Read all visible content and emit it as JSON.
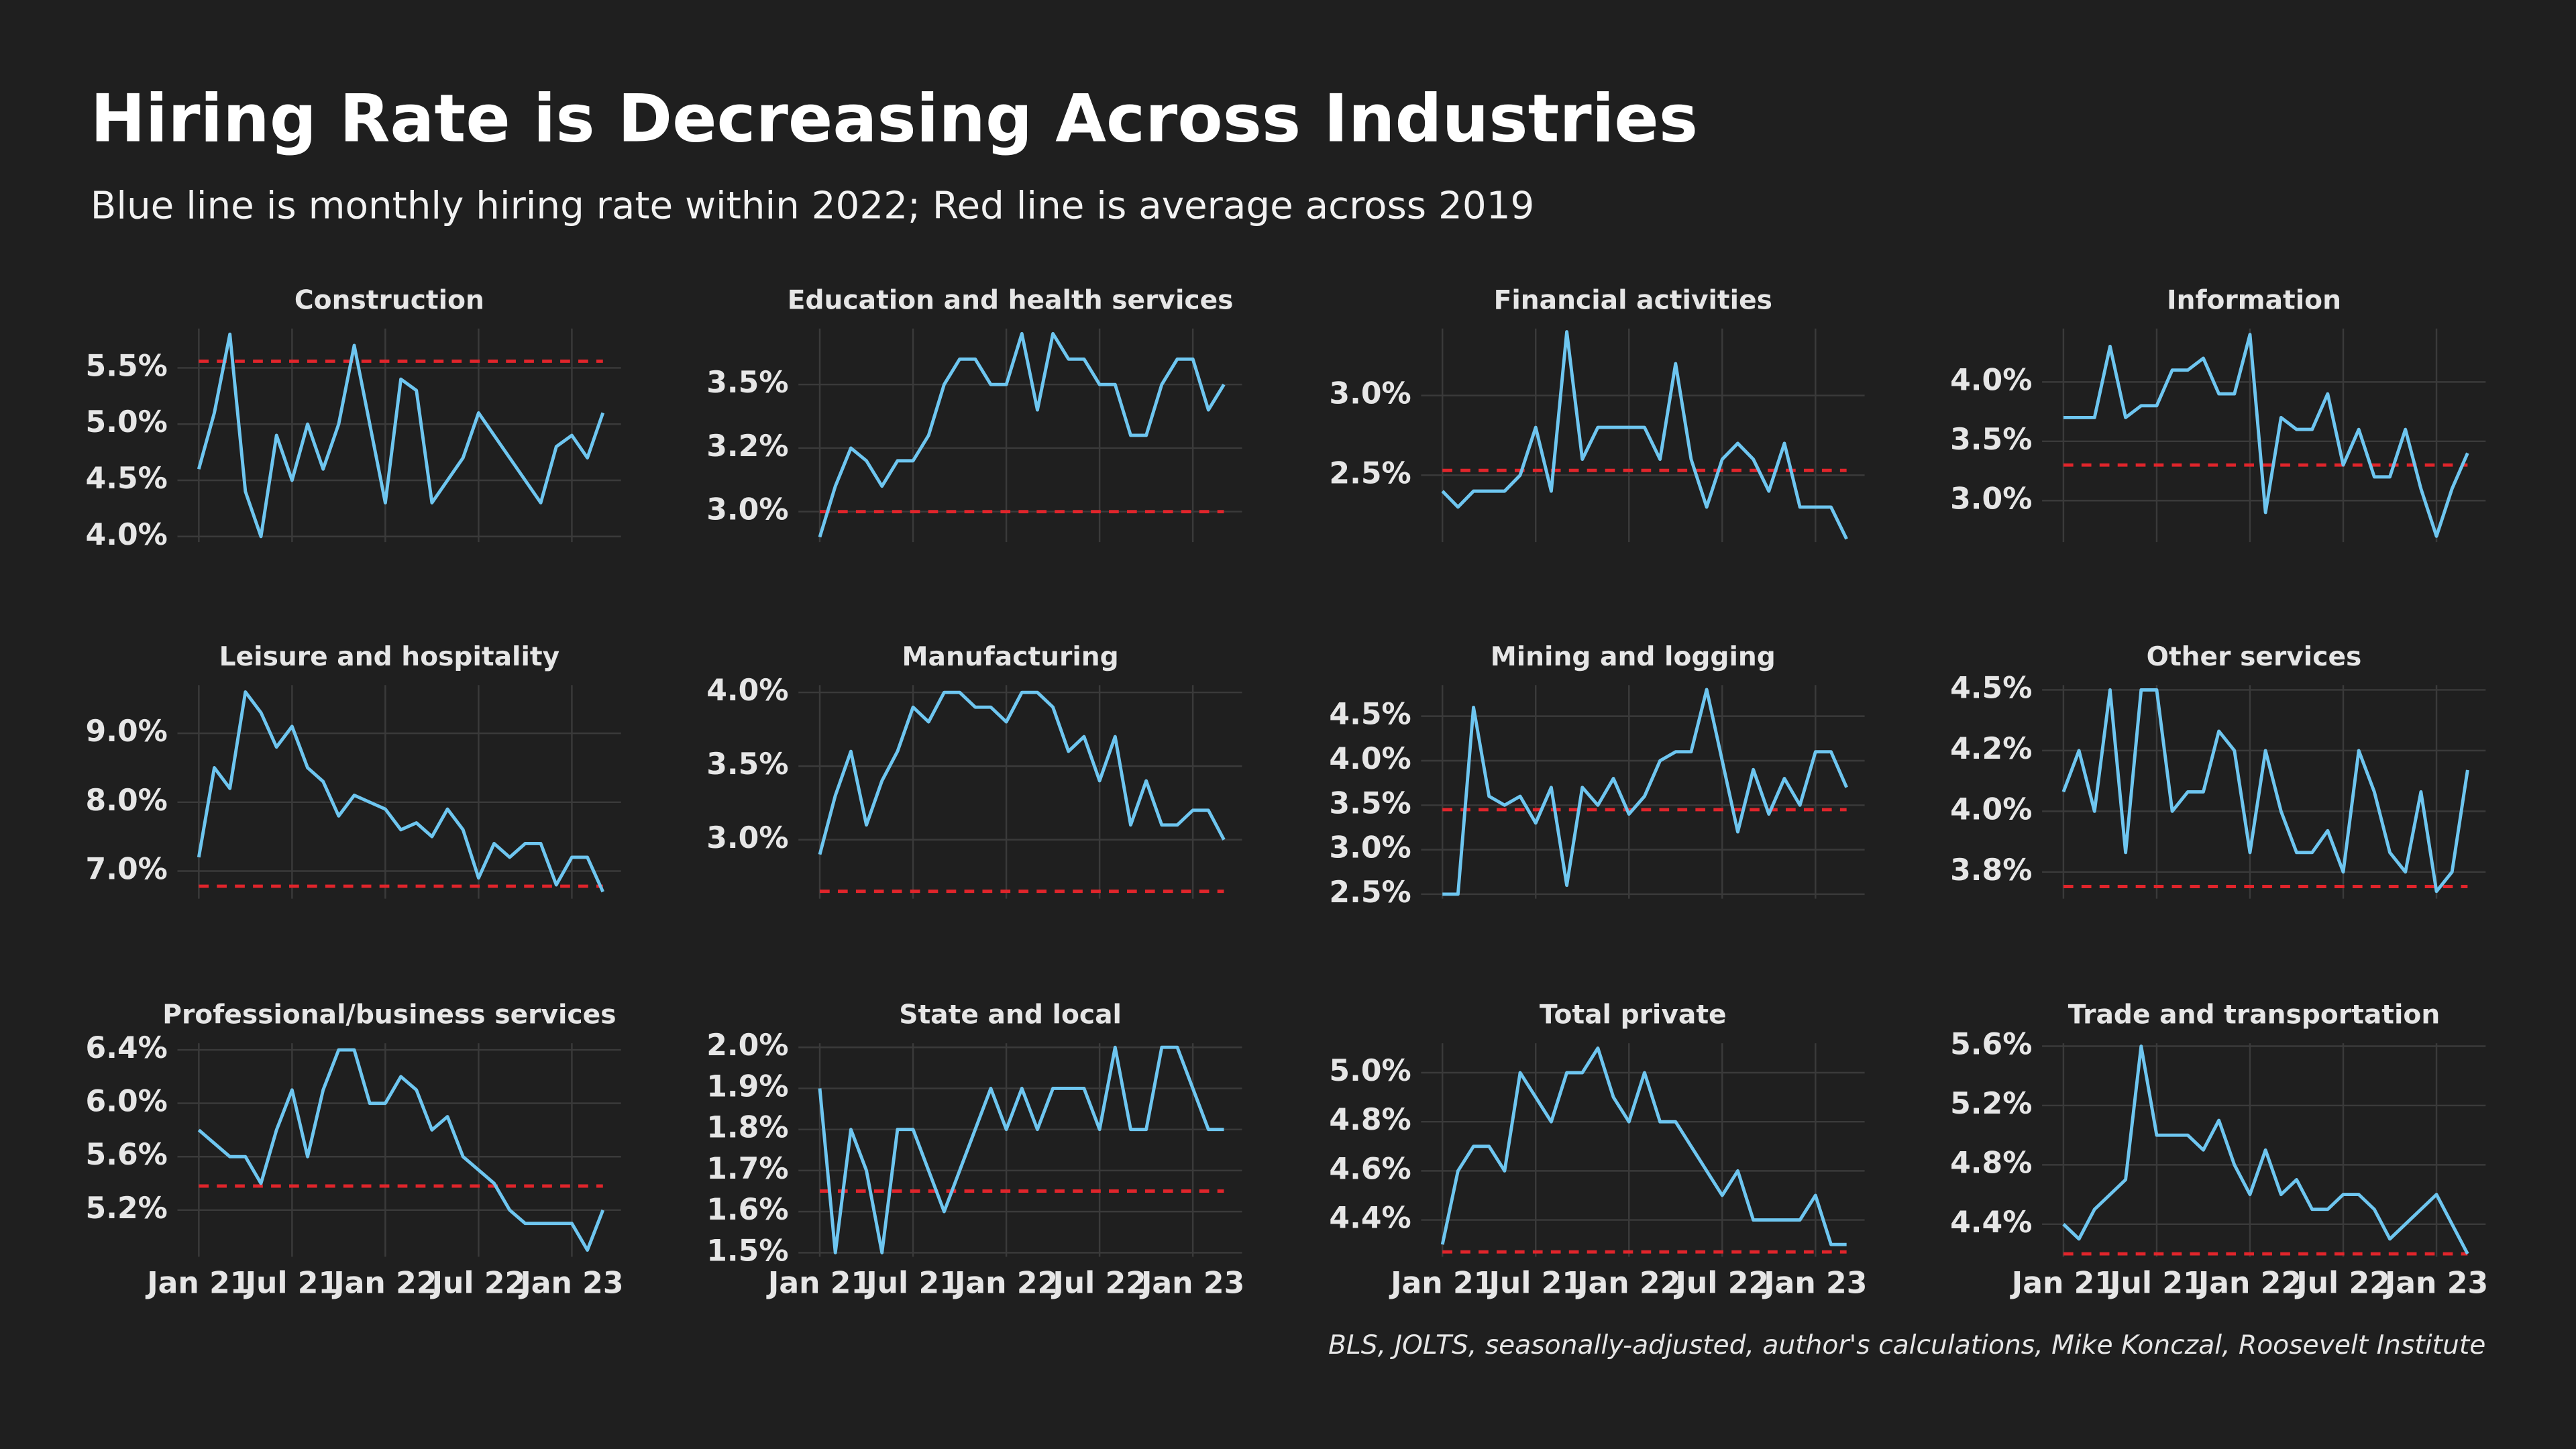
{
  "title": "Hiring Rate is Decreasing Across Industries",
  "subtitle": "Blue line is monthly hiring rate within 2022; Red line is average across 2019",
  "caption": "BLS, JOLTS, seasonally-adjusted, author's calculations, Mike Konczal, Roosevelt Institute",
  "categories": [
    "Jan 21",
    null,
    null,
    null,
    null,
    null,
    "Jul 21",
    null,
    null,
    null,
    null,
    null,
    "Jan 22",
    null,
    null,
    null,
    null,
    null,
    "Jul 22",
    null,
    null,
    null,
    null,
    null,
    "Jan 23",
    null,
    null
  ],
  "chart_data": [
    {
      "type": "line",
      "title": "Construction",
      "ylim": [
        3.95,
        5.85
      ],
      "yticks": [
        {
          "value": 4.0,
          "label": "4.0%"
        },
        {
          "value": 4.5,
          "label": "4.5%"
        },
        {
          "value": 5.0,
          "label": "5.0%"
        },
        {
          "value": 5.5,
          "label": "5.5%"
        }
      ],
      "series": [
        {
          "color": "#6ec6f0",
          "values": [
            4.6,
            5.1,
            5.8,
            4.4,
            4.0,
            4.9,
            4.5,
            5.0,
            4.6,
            5.0,
            5.7,
            5.0,
            4.3,
            5.4,
            5.3,
            4.3,
            4.5,
            4.7,
            5.1,
            4.9,
            4.7,
            4.5,
            4.3,
            4.8,
            4.9,
            4.7,
            5.1
          ]
        }
      ],
      "reference_line": {
        "value": 5.56,
        "color": "#e0252b"
      }
    },
    {
      "type": "line",
      "title": "Education and health services",
      "ylim": [
        2.88,
        3.72
      ],
      "yticks": [
        {
          "value": 3.0,
          "label": "3.0%"
        },
        {
          "value": 3.25,
          "label": "3.2%"
        },
        {
          "value": 3.5,
          "label": "3.5%"
        }
      ],
      "series": [
        {
          "color": "#6ec6f0",
          "values": [
            2.9,
            3.1,
            3.25,
            3.2,
            3.1,
            3.2,
            3.2,
            3.3,
            3.5,
            3.6,
            3.6,
            3.5,
            3.5,
            3.7,
            3.4,
            3.7,
            3.6,
            3.6,
            3.5,
            3.5,
            3.3,
            3.3,
            3.5,
            3.6,
            3.6,
            3.4,
            3.5
          ]
        }
      ],
      "reference_line": {
        "value": 3.0,
        "color": "#e0252b"
      }
    },
    {
      "type": "line",
      "title": "Financial activities",
      "ylim": [
        2.08,
        3.42
      ],
      "yticks": [
        {
          "value": 2.5,
          "label": "2.5%"
        },
        {
          "value": 3.0,
          "label": "3.0%"
        }
      ],
      "series": [
        {
          "color": "#6ec6f0",
          "values": [
            2.4,
            2.3,
            2.4,
            2.4,
            2.4,
            2.5,
            2.8,
            2.4,
            3.4,
            2.6,
            2.8,
            2.8,
            2.8,
            2.8,
            2.6,
            3.2,
            2.6,
            2.3,
            2.6,
            2.7,
            2.6,
            2.4,
            2.7,
            2.3,
            2.3,
            2.3,
            2.1
          ]
        }
      ],
      "reference_line": {
        "value": 2.53,
        "color": "#e0252b"
      }
    },
    {
      "type": "line",
      "title": "Information",
      "ylim": [
        2.65,
        4.45
      ],
      "yticks": [
        {
          "value": 3.0,
          "label": "3.0%"
        },
        {
          "value": 3.5,
          "label": "3.5%"
        },
        {
          "value": 4.0,
          "label": "4.0%"
        }
      ],
      "series": [
        {
          "color": "#6ec6f0",
          "values": [
            3.7,
            3.7,
            3.7,
            4.3,
            3.7,
            3.8,
            3.8,
            4.1,
            4.1,
            4.2,
            3.9,
            3.9,
            4.4,
            2.9,
            3.7,
            3.6,
            3.6,
            3.9,
            3.3,
            3.6,
            3.2,
            3.2,
            3.6,
            3.1,
            2.7,
            3.1,
            3.4
          ]
        }
      ],
      "reference_line": {
        "value": 3.3,
        "color": "#e0252b"
      }
    },
    {
      "type": "line",
      "title": "Leisure and hospitality",
      "ylim": [
        6.6,
        9.7
      ],
      "yticks": [
        {
          "value": 7.0,
          "label": "7.0%"
        },
        {
          "value": 8.0,
          "label": "8.0%"
        },
        {
          "value": 9.0,
          "label": "9.0%"
        }
      ],
      "series": [
        {
          "color": "#6ec6f0",
          "values": [
            7.2,
            8.5,
            8.2,
            9.6,
            9.3,
            8.8,
            9.1,
            8.5,
            8.3,
            7.8,
            8.1,
            8.0,
            7.9,
            7.6,
            7.7,
            7.5,
            7.9,
            7.6,
            6.9,
            7.4,
            7.2,
            7.4,
            7.4,
            6.8,
            7.2,
            7.2,
            6.7
          ]
        }
      ],
      "reference_line": {
        "value": 6.78,
        "color": "#e0252b"
      }
    },
    {
      "type": "line",
      "title": "Manufacturing",
      "ylim": [
        2.6,
        4.05
      ],
      "yticks": [
        {
          "value": 3.0,
          "label": "3.0%"
        },
        {
          "value": 3.5,
          "label": "3.5%"
        },
        {
          "value": 4.0,
          "label": "4.0%"
        }
      ],
      "series": [
        {
          "color": "#6ec6f0",
          "values": [
            2.9,
            3.3,
            3.6,
            3.1,
            3.4,
            3.6,
            3.9,
            3.8,
            4.0,
            4.0,
            3.9,
            3.9,
            3.8,
            4.0,
            4.0,
            3.9,
            3.6,
            3.7,
            3.4,
            3.7,
            3.1,
            3.4,
            3.1,
            3.1,
            3.2,
            3.2,
            3.0
          ]
        }
      ],
      "reference_line": {
        "value": 2.65,
        "color": "#e0252b"
      }
    },
    {
      "type": "line",
      "title": "Mining and logging",
      "ylim": [
        2.45,
        4.85
      ],
      "yticks": [
        {
          "value": 2.5,
          "label": "2.5%"
        },
        {
          "value": 3.0,
          "label": "3.0%"
        },
        {
          "value": 3.5,
          "label": "3.5%"
        },
        {
          "value": 4.0,
          "label": "4.0%"
        },
        {
          "value": 4.5,
          "label": "4.5%"
        }
      ],
      "series": [
        {
          "color": "#6ec6f0",
          "values": [
            2.5,
            2.5,
            4.6,
            3.6,
            3.5,
            3.6,
            3.3,
            3.7,
            2.6,
            3.7,
            3.5,
            3.8,
            3.4,
            3.6,
            4.0,
            4.1,
            4.1,
            4.8,
            4.0,
            3.2,
            3.9,
            3.4,
            3.8,
            3.5,
            4.1,
            4.1,
            3.7
          ]
        }
      ],
      "reference_line": {
        "value": 3.45,
        "color": "#e0252b"
      }
    },
    {
      "type": "line",
      "title": "Other services",
      "ylim": [
        3.64,
        4.52
      ],
      "yticks": [
        {
          "value": 3.75,
          "label": "3.8%"
        },
        {
          "value": 4.0,
          "label": "4.0%"
        },
        {
          "value": 4.25,
          "label": "4.2%"
        },
        {
          "value": 4.5,
          "label": "4.5%"
        }
      ],
      "series": [
        {
          "color": "#6ec6f0",
          "values": [
            4.08,
            4.25,
            4.0,
            4.5,
            3.83,
            4.5,
            4.5,
            4.0,
            4.08,
            4.08,
            4.33,
            4.25,
            3.83,
            4.25,
            4.0,
            3.83,
            3.83,
            3.92,
            3.75,
            4.25,
            4.08,
            3.83,
            3.75,
            4.08,
            3.67,
            3.75,
            4.17
          ]
        }
      ],
      "reference_line": {
        "value": 3.69,
        "color": "#e0252b"
      }
    },
    {
      "type": "line",
      "title": "Professional/business services",
      "ylim": [
        4.85,
        6.45
      ],
      "yticks": [
        {
          "value": 5.2,
          "label": "5.2%"
        },
        {
          "value": 5.6,
          "label": "5.6%"
        },
        {
          "value": 6.0,
          "label": "6.0%"
        },
        {
          "value": 6.4,
          "label": "6.4%"
        }
      ],
      "series": [
        {
          "color": "#6ec6f0",
          "values": [
            5.8,
            5.7,
            5.6,
            5.6,
            5.4,
            5.8,
            6.1,
            5.6,
            6.1,
            6.4,
            6.4,
            6.0,
            6.0,
            6.2,
            6.1,
            5.8,
            5.9,
            5.6,
            5.5,
            5.4,
            5.2,
            5.1,
            5.1,
            5.1,
            5.1,
            4.9,
            5.2
          ]
        }
      ],
      "reference_line": {
        "value": 5.38,
        "color": "#e0252b"
      }
    },
    {
      "type": "line",
      "title": "State and local",
      "ylim": [
        1.49,
        2.01
      ],
      "yticks": [
        {
          "value": 1.5,
          "label": "1.5%"
        },
        {
          "value": 1.6,
          "label": "1.6%"
        },
        {
          "value": 1.7,
          "label": "1.7%"
        },
        {
          "value": 1.8,
          "label": "1.8%"
        },
        {
          "value": 1.9,
          "label": "1.9%"
        },
        {
          "value": 2.0,
          "label": "2.0%"
        }
      ],
      "series": [
        {
          "color": "#6ec6f0",
          "values": [
            1.9,
            1.5,
            1.8,
            1.7,
            1.5,
            1.8,
            1.8,
            1.7,
            1.6,
            1.7,
            1.8,
            1.9,
            1.8,
            1.9,
            1.8,
            1.9,
            1.9,
            1.9,
            1.8,
            2.0,
            1.8,
            1.8,
            2.0,
            2.0,
            1.9,
            1.8,
            1.8
          ]
        }
      ],
      "reference_line": {
        "value": 1.65,
        "color": "#e0252b"
      }
    },
    {
      "type": "line",
      "title": "Total private",
      "ylim": [
        4.25,
        5.12
      ],
      "yticks": [
        {
          "value": 4.4,
          "label": "4.4%"
        },
        {
          "value": 4.6,
          "label": "4.6%"
        },
        {
          "value": 4.8,
          "label": "4.8%"
        },
        {
          "value": 5.0,
          "label": "5.0%"
        }
      ],
      "series": [
        {
          "color": "#6ec6f0",
          "values": [
            4.3,
            4.6,
            4.7,
            4.7,
            4.6,
            5.0,
            4.9,
            4.8,
            5.0,
            5.0,
            5.1,
            4.9,
            4.8,
            5.0,
            4.8,
            4.8,
            4.7,
            4.6,
            4.5,
            4.6,
            4.4,
            4.4,
            4.4,
            4.4,
            4.5,
            4.3,
            4.3
          ]
        }
      ],
      "reference_line": {
        "value": 4.27,
        "color": "#e0252b"
      }
    },
    {
      "type": "line",
      "title": "Trade and transportation",
      "ylim": [
        4.18,
        5.62
      ],
      "yticks": [
        {
          "value": 4.4,
          "label": "4.4%"
        },
        {
          "value": 4.8,
          "label": "4.8%"
        },
        {
          "value": 5.2,
          "label": "5.2%"
        },
        {
          "value": 5.6,
          "label": "5.6%"
        }
      ],
      "series": [
        {
          "color": "#6ec6f0",
          "values": [
            4.4,
            4.3,
            4.5,
            4.6,
            4.7,
            5.6,
            5.0,
            5.0,
            5.0,
            4.9,
            5.1,
            4.8,
            4.6,
            4.9,
            4.6,
            4.7,
            4.5,
            4.5,
            4.6,
            4.6,
            4.5,
            4.3,
            4.4,
            4.5,
            4.6,
            4.4,
            4.2
          ]
        }
      ],
      "reference_line": {
        "value": 4.2,
        "color": "#e0252b"
      }
    }
  ]
}
